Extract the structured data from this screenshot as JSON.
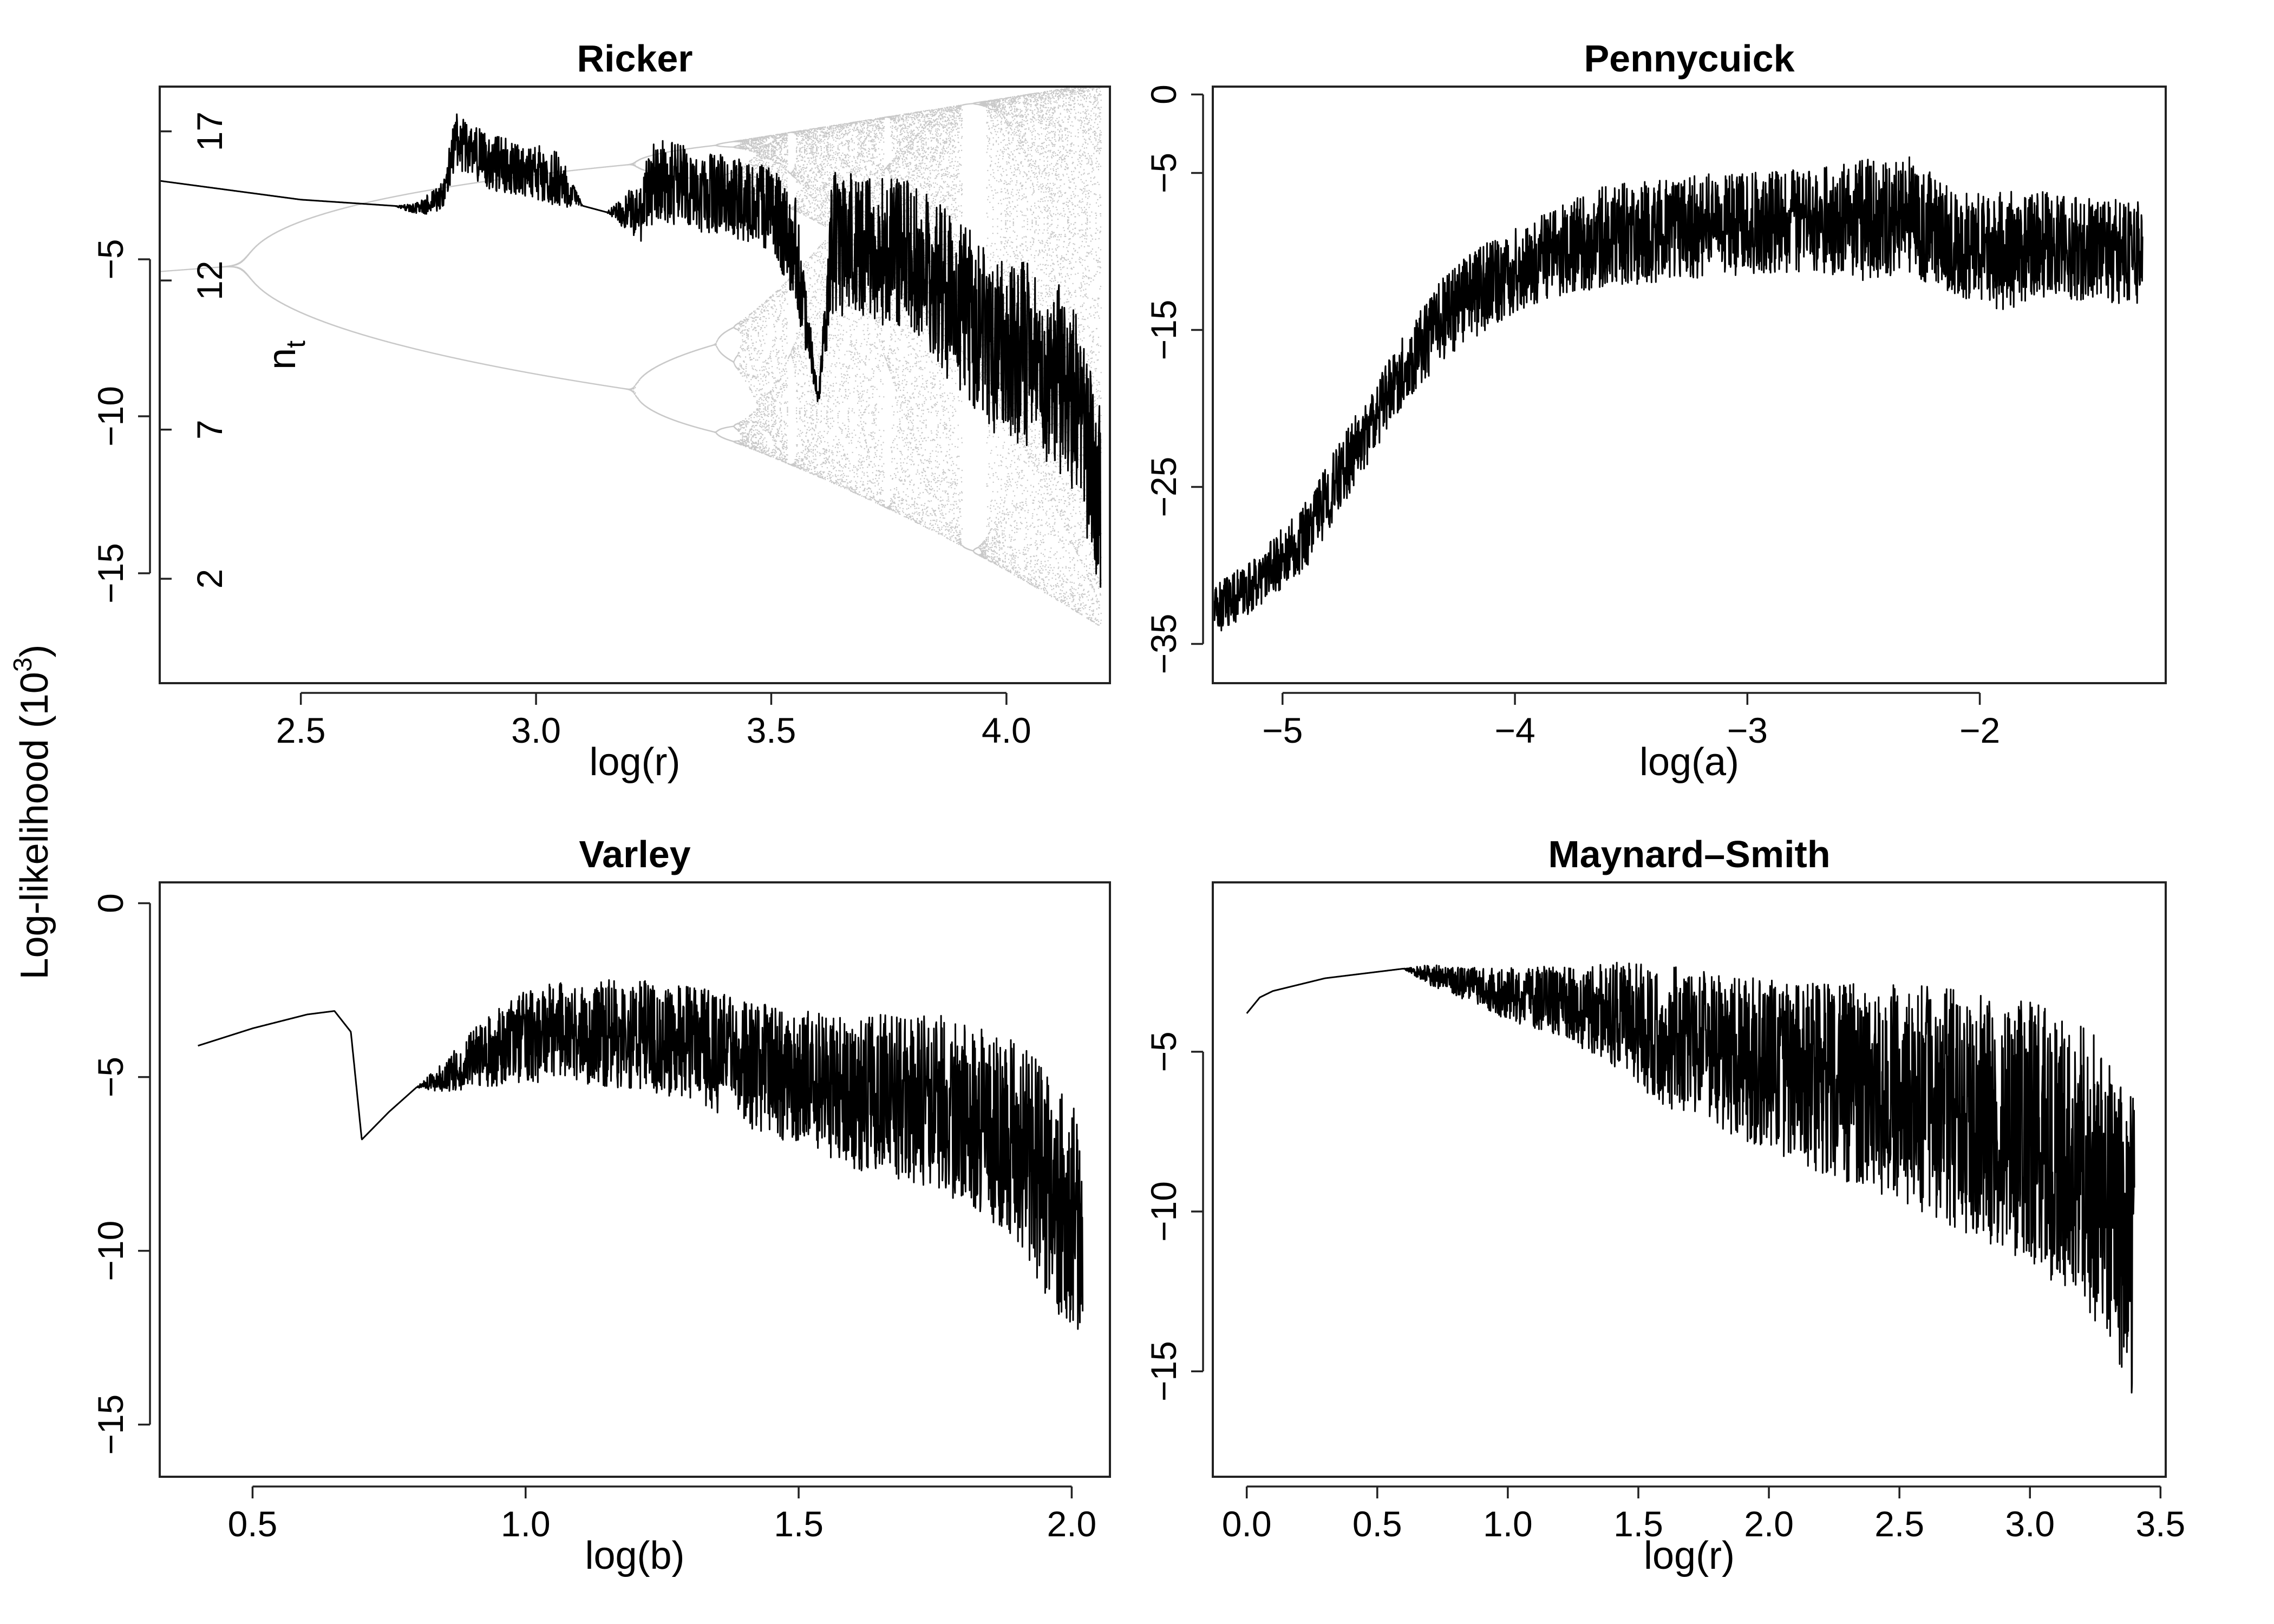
{
  "figure": {
    "ylabel": "Log-likelihood (10",
    "ylabel_sup": "3",
    "ylabel_close": ")"
  },
  "chart_data": [
    {
      "type": "line",
      "title": "Ricker",
      "xlabel": "log(r)",
      "ylabel": "Log-likelihood (10^3)",
      "xlim": [
        2.2,
        4.22
      ],
      "ylim": [
        -18.5,
        0.5
      ],
      "xticks": [
        2.5,
        3.0,
        3.5,
        4.0
      ],
      "xtick_labels": [
        "2.5",
        "3.0",
        "3.5",
        "4.0"
      ],
      "yticks": [
        -5,
        -10,
        -15
      ],
      "ytick_labels": [
        "-5",
        "-10",
        "-15"
      ],
      "secondary_axis": {
        "label": "n",
        "label_sub": "t",
        "lim": [
          -1.5,
          18.5
        ],
        "ticks": [
          2,
          7,
          12,
          17
        ],
        "tick_labels": [
          "2",
          "7",
          "12",
          "17"
        ]
      },
      "series": [
        {
          "x": [
            2.2,
            2.3,
            2.4,
            2.5,
            2.6,
            2.7,
            2.75,
            2.8,
            2.83,
            2.9,
            3.0,
            3.05,
            3.1,
            3.15,
            3.22,
            3.25,
            3.3,
            3.4,
            3.5,
            3.55,
            3.6,
            3.63,
            3.7,
            3.8,
            3.9,
            4.0,
            4.05,
            4.1,
            4.15,
            4.2
          ],
          "y": [
            -2.5,
            -2.7,
            -2.9,
            -3.1,
            -3.2,
            -3.3,
            -3.4,
            -3.0,
            -1.2,
            -1.9,
            -2.2,
            -2.5,
            -3.3,
            -3.5,
            -3.5,
            -2.5,
            -2.6,
            -3.0,
            -3.4,
            -4.5,
            -9.5,
            -4.5,
            -4.6,
            -5.0,
            -6.5,
            -8.0,
            -8.0,
            -8.6,
            -9.5,
            -13.0
          ],
          "noise": [
            0,
            0,
            0,
            0,
            0,
            0,
            0.4,
            0.8,
            1.6,
            1.6,
            1.6,
            1.6,
            0,
            0,
            1.9,
            2.4,
            2.4,
            2.4,
            2.4,
            3.3,
            0.4,
            4.2,
            4.2,
            4.5,
            5.0,
            5.5,
            5.5,
            5.5,
            5.5,
            6.0
          ]
        }
      ],
      "bifurcation_background": {
        "color": "#c8c8c8"
      }
    },
    {
      "type": "line",
      "title": "Pennycuick",
      "xlabel": "log(a)",
      "ylabel": "",
      "xlim": [
        -5.3,
        -1.2
      ],
      "ylim": [
        -37.5,
        0.5
      ],
      "xticks": [
        -5,
        -4,
        -3,
        -2
      ],
      "xtick_labels": [
        "-5",
        "-4",
        "-3",
        "-2"
      ],
      "yticks": [
        0,
        -5,
        -15,
        -25,
        -35
      ],
      "ytick_labels": [
        "0",
        "-5",
        "-15",
        "-25",
        "-35"
      ],
      "series": [
        {
          "x": [
            -5.3,
            -5.1,
            -4.9,
            -4.7,
            -4.5,
            -4.3,
            -4.1,
            -3.9,
            -3.6,
            -3.3,
            -3.0,
            -2.7,
            -2.5,
            -2.3,
            -2.1,
            -1.9,
            -1.7,
            -1.5,
            -1.3
          ],
          "y": [
            -33,
            -31,
            -28,
            -23,
            -18,
            -14,
            -12,
            -10.5,
            -9,
            -8.5,
            -8.2,
            -8.0,
            -8.0,
            -7.8,
            -9.5,
            -10,
            -9.5,
            -10,
            -10
          ],
          "noise": [
            3,
            3,
            4,
            4,
            4,
            5,
            5,
            5,
            6,
            6,
            6,
            6,
            7,
            7,
            6,
            7,
            6,
            6,
            6
          ]
        }
      ]
    },
    {
      "type": "line",
      "title": "Varley",
      "xlabel": "log(b)",
      "ylabel": "",
      "xlim": [
        0.33,
        2.07
      ],
      "ylim": [
        -16.5,
        0.6
      ],
      "xticks": [
        0.5,
        1.0,
        1.5,
        2.0
      ],
      "xtick_labels": [
        "0.5",
        "1.0",
        "1.5",
        "2.0"
      ],
      "yticks": [
        0,
        -5,
        -10,
        -15
      ],
      "ytick_labels": [
        "0",
        "-5",
        "-10",
        "-15"
      ],
      "series": [
        {
          "x": [
            0.4,
            0.5,
            0.6,
            0.65,
            0.68,
            0.7,
            0.75,
            0.8,
            0.85,
            0.9,
            1.0,
            1.1,
            1.2,
            1.3,
            1.4,
            1.5,
            1.6,
            1.7,
            1.8,
            1.9,
            1.95,
            2.0,
            2.02
          ],
          "y": [
            -4.1,
            -3.6,
            -3.2,
            -3.1,
            -3.7,
            -6.8,
            -6.0,
            -5.3,
            -5.0,
            -4.5,
            -3.8,
            -3.7,
            -3.8,
            -4.0,
            -4.6,
            -5.0,
            -5.5,
            -5.5,
            -6.0,
            -7.0,
            -8.0,
            -9.0,
            -9.5
          ],
          "noise": [
            0,
            0,
            0,
            0,
            0,
            0,
            0,
            0,
            0.8,
            1.5,
            2.5,
            2.7,
            2.9,
            3.0,
            3.3,
            3.6,
            4.0,
            4.5,
            4.8,
            5.5,
            6.0,
            6.0,
            6.0
          ]
        }
      ]
    },
    {
      "type": "line",
      "title": "Maynard–Smith",
      "xlabel": "log(r)",
      "ylabel": "",
      "xlim": [
        -0.13,
        3.52
      ],
      "ylim": [
        -18.3,
        0.3
      ],
      "xticks": [
        0.0,
        0.5,
        1.0,
        1.5,
        2.0,
        2.5,
        3.0,
        3.5
      ],
      "xtick_labels": [
        "0.0",
        "0.5",
        "1.0",
        "1.5",
        "2.0",
        "2.5",
        "3.0",
        "3.5"
      ],
      "yticks": [
        -5,
        -10,
        -15
      ],
      "ytick_labels": [
        "-5",
        "-10",
        "-15"
      ],
      "series": [
        {
          "x": [
            0.0,
            0.05,
            0.1,
            0.2,
            0.3,
            0.4,
            0.5,
            0.6,
            0.7,
            0.8,
            1.0,
            1.2,
            1.4,
            1.6,
            1.8,
            2.0,
            2.2,
            2.4,
            2.6,
            2.8,
            3.0,
            3.2,
            3.3,
            3.4
          ],
          "y": [
            -3.8,
            -3.3,
            -3.1,
            -2.9,
            -2.7,
            -2.6,
            -2.5,
            -2.4,
            -2.6,
            -2.8,
            -3.2,
            -3.4,
            -3.8,
            -4.5,
            -5.0,
            -5.5,
            -5.8,
            -6.2,
            -6.5,
            -7.0,
            -7.5,
            -8.5,
            -9.5,
            -11.0
          ],
          "noise": [
            0,
            0,
            0,
            0,
            0,
            0,
            0,
            0,
            0.6,
            0.8,
            1.5,
            2.0,
            3.0,
            4.0,
            4.5,
            5.0,
            5.5,
            6.0,
            6.5,
            7.0,
            7.5,
            8.0,
            8.5,
            9.0
          ]
        }
      ]
    }
  ]
}
